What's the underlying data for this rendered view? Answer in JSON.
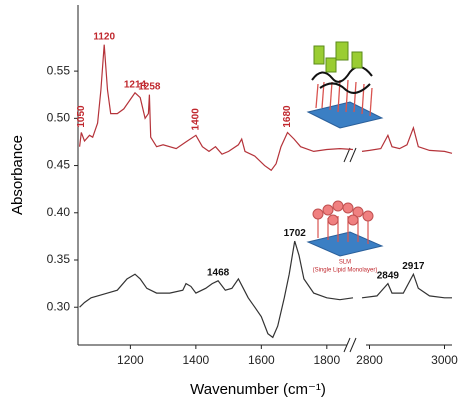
{
  "chart_data": {
    "type": "line",
    "ylabel": "Absorbance",
    "xlabel": "Wavenumber (cm⁻¹)",
    "xlim": [
      1040,
      3020
    ],
    "x_break": [
      1880,
      2780
    ],
    "xticks": [
      1200,
      1400,
      1600,
      1800,
      2800,
      3000
    ],
    "ylim": [
      0.26,
      0.62
    ],
    "yticks": [
      {
        "value": 0.3,
        "label": "0.30"
      },
      0.35,
      {
        "value": 0.4,
        "label": "0.40"
      },
      0.45,
      {
        "value": 0.5,
        "label": "0.50"
      },
      0.55
    ],
    "inset_caption": [
      "SLM",
      "(Single Lipid Monolayer)"
    ],
    "series": [
      {
        "color": "#b5333a",
        "label_color": "#c0282e",
        "x": [
          1045,
          1050,
          1060,
          1075,
          1085,
          1100,
          1110,
          1120,
          1130,
          1140,
          1160,
          1180,
          1200,
          1214,
          1230,
          1245,
          1255,
          1258,
          1262,
          1280,
          1300,
          1340,
          1370,
          1400,
          1420,
          1440,
          1460,
          1480,
          1500,
          1530,
          1540,
          1550,
          1580,
          1610,
          1630,
          1645,
          1660,
          1680,
          1700,
          1720,
          1760,
          1800,
          1840,
          1880,
          2780,
          2800,
          2830,
          2849,
          2860,
          2880,
          2900,
          2917,
          2930,
          2960,
          3000,
          3020
        ],
        "values": [
          0.47,
          0.485,
          0.476,
          0.482,
          0.48,
          0.495,
          0.53,
          0.578,
          0.53,
          0.505,
          0.505,
          0.51,
          0.52,
          0.527,
          0.522,
          0.5,
          0.505,
          0.525,
          0.48,
          0.47,
          0.472,
          0.468,
          0.475,
          0.482,
          0.47,
          0.465,
          0.47,
          0.462,
          0.465,
          0.472,
          0.478,
          0.465,
          0.46,
          0.45,
          0.445,
          0.452,
          0.47,
          0.485,
          0.478,
          0.47,
          0.465,
          0.467,
          0.468,
          0.467,
          0.465,
          0.466,
          0.468,
          0.482,
          0.47,
          0.468,
          0.472,
          0.49,
          0.47,
          0.466,
          0.465,
          0.463
        ],
        "peak_labels": [
          "1050",
          "1120",
          "1214",
          "1258",
          "1400",
          "1680"
        ]
      },
      {
        "color": "#333333",
        "label_color": "#111111",
        "x": [
          1045,
          1060,
          1080,
          1100,
          1130,
          1160,
          1190,
          1214,
          1230,
          1250,
          1280,
          1320,
          1360,
          1370,
          1385,
          1400,
          1430,
          1450,
          1468,
          1490,
          1510,
          1530,
          1545,
          1560,
          1580,
          1600,
          1620,
          1635,
          1650,
          1670,
          1685,
          1702,
          1715,
          1730,
          1760,
          1800,
          1840,
          1880,
          2780,
          2820,
          2849,
          2860,
          2890,
          2917,
          2930,
          2960,
          3000,
          3020
        ],
        "values": [
          0.3,
          0.305,
          0.31,
          0.312,
          0.315,
          0.318,
          0.33,
          0.335,
          0.33,
          0.32,
          0.315,
          0.315,
          0.318,
          0.325,
          0.322,
          0.315,
          0.32,
          0.325,
          0.328,
          0.318,
          0.32,
          0.33,
          0.32,
          0.31,
          0.3,
          0.29,
          0.272,
          0.268,
          0.28,
          0.31,
          0.335,
          0.37,
          0.355,
          0.33,
          0.315,
          0.31,
          0.308,
          0.31,
          0.31,
          0.312,
          0.325,
          0.315,
          0.315,
          0.335,
          0.32,
          0.312,
          0.31,
          0.31
        ],
        "peak_labels": [
          "1468",
          "1702",
          "2849",
          "2917"
        ]
      }
    ]
  }
}
